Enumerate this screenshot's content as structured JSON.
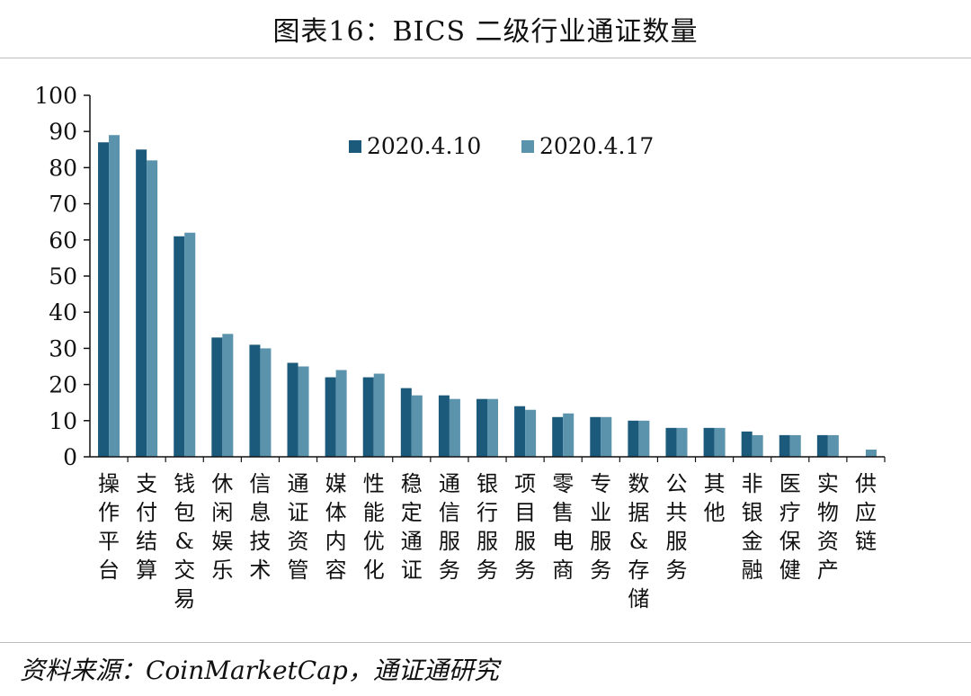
{
  "page": {
    "title": "图表16：BICS 二级行业通证数量",
    "source": "资料来源：CoinMarketCap，通证通研究"
  },
  "colors": {
    "series_1": "#1c5a7c",
    "series_2": "#5b93ad",
    "axis": "#111111"
  },
  "chart_data": {
    "type": "bar",
    "title": "",
    "xlabel": "",
    "ylabel": "",
    "ylim": [
      0,
      100
    ],
    "yticks": [
      0,
      10,
      20,
      30,
      40,
      50,
      60,
      70,
      80,
      90,
      100
    ],
    "legend_position": "top-center",
    "grid": false,
    "categories": [
      "操作平台",
      "支付结算",
      "钱包&交易",
      "休闲娱乐",
      "信息技术",
      "通证资管",
      "媒体内容",
      "性能优化",
      "稳定通证",
      "通信服务",
      "银行服务",
      "项目服务",
      "零售电商",
      "专业服务",
      "数据&存储",
      "公共服务",
      "其他",
      "非银金融",
      "医疗保健",
      "实物资产",
      "供应链"
    ],
    "series": [
      {
        "name": "2020.4.10",
        "values": [
          87,
          85,
          61,
          33,
          31,
          26,
          22,
          22,
          19,
          17,
          16,
          14,
          11,
          11,
          10,
          8,
          8,
          7,
          6,
          6,
          0
        ]
      },
      {
        "name": "2020.4.17",
        "values": [
          89,
          82,
          62,
          34,
          30,
          25,
          24,
          23,
          17,
          16,
          16,
          13,
          12,
          11,
          10,
          8,
          8,
          6,
          6,
          6,
          2
        ]
      }
    ]
  }
}
